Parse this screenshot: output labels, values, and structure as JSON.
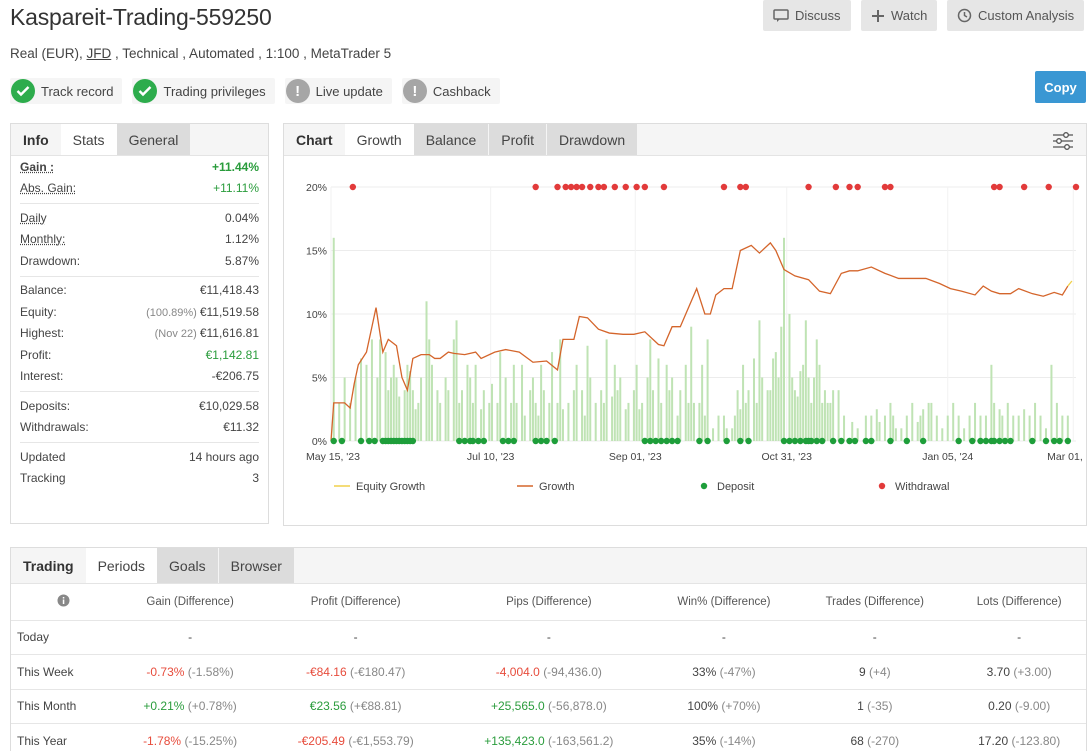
{
  "header": {
    "title": "Kaspareit-Trading-559250",
    "subtitle_pre": "Real (EUR), ",
    "broker": "JFD",
    "subtitle_post": " , Technical , Automated , 1:100 , MetaTrader 5",
    "discuss_label": "Discuss",
    "watch_label": "Watch",
    "custom_analysis_label": "Custom Analysis",
    "copy_label": "Copy"
  },
  "badges": [
    {
      "label": "Track record",
      "status": "ok"
    },
    {
      "label": "Trading privileges",
      "status": "ok"
    },
    {
      "label": "Live update",
      "status": "warn"
    },
    {
      "label": "Cashback",
      "status": "warn"
    }
  ],
  "info_panel": {
    "tabs": [
      "Info",
      "Stats",
      "General"
    ],
    "rows": [
      {
        "k": "Gain :",
        "v": "+11.44%",
        "green": true,
        "bold": true,
        "underline": true
      },
      {
        "k": "Abs. Gain:",
        "v": "+11.11%",
        "green": true,
        "underline": true
      },
      {
        "sep": true
      },
      {
        "k": "Daily",
        "v": "0.04%",
        "underline": true
      },
      {
        "k": "Monthly:",
        "v": "1.12%",
        "underline": true
      },
      {
        "k": "Drawdown:",
        "v": "5.87%"
      },
      {
        "sep": true
      },
      {
        "k": "Balance:",
        "v": "€11,418.43"
      },
      {
        "k": "Equity:",
        "pre": "(100.89%)",
        "v": "€11,519.58"
      },
      {
        "k": "Highest:",
        "pre": "(Nov 22)",
        "v": "€11,616.81"
      },
      {
        "k": "Profit:",
        "v": "€1,142.81",
        "green": true
      },
      {
        "k": "Interest:",
        "v": "-€206.75"
      },
      {
        "sep": true
      },
      {
        "k": "Deposits:",
        "v": "€10,029.58"
      },
      {
        "k": "Withdrawals:",
        "v": "€11.32"
      },
      {
        "sep": true
      },
      {
        "k": "Updated",
        "v": "14 hours ago"
      },
      {
        "k": "Tracking",
        "v": "3"
      }
    ]
  },
  "chart_panel": {
    "tabs": [
      "Chart",
      "Growth",
      "Balance",
      "Profit",
      "Drawdown"
    ],
    "settings_icon": "sliders-icon"
  },
  "chart_data": {
    "type": "line",
    "y_ticks": [
      "0%",
      "5%",
      "10%",
      "15%",
      "20%"
    ],
    "ylim": [
      0,
      20
    ],
    "x_ticks": [
      "May 15, '23",
      "Jul 10, '23",
      "Sep 01, '23",
      "Oct 31, '23",
      "Jan 05, '24",
      "Mar 01, '24"
    ],
    "legend": [
      "Equity Growth",
      "Growth",
      "Deposit",
      "Withdrawal"
    ],
    "colors": {
      "growth": "#d4652b",
      "equity": "#f0d04a",
      "deposit": "#1e9e3a",
      "withdrawal": "#e23a3a",
      "bars": "#bfe3b4"
    },
    "growth_series": [
      [
        0,
        0
      ],
      [
        2,
        3
      ],
      [
        10,
        3
      ],
      [
        14,
        2.6
      ],
      [
        17,
        4.5
      ],
      [
        20,
        6
      ],
      [
        26,
        7
      ],
      [
        30,
        9
      ],
      [
        33,
        10.5
      ],
      [
        38,
        7
      ],
      [
        42,
        8
      ],
      [
        48,
        7.5
      ],
      [
        52,
        5
      ],
      [
        56,
        4
      ],
      [
        60,
        6.5
      ],
      [
        66,
        6.8
      ],
      [
        72,
        6.8
      ],
      [
        76,
        6.5
      ],
      [
        80,
        6.5
      ],
      [
        86,
        7
      ],
      [
        90,
        6.9
      ],
      [
        98,
        6.8
      ],
      [
        106,
        7
      ],
      [
        110,
        6.5
      ],
      [
        120,
        7
      ],
      [
        128,
        7.2
      ],
      [
        138,
        7
      ],
      [
        148,
        6.2
      ],
      [
        158,
        6.3
      ],
      [
        166,
        5.6
      ],
      [
        170,
        8
      ],
      [
        178,
        8
      ],
      [
        182,
        9.8
      ],
      [
        188,
        9.7
      ],
      [
        196,
        8.8
      ],
      [
        204,
        8.5
      ],
      [
        214,
        8.4
      ],
      [
        222,
        8.4
      ],
      [
        230,
        8.6
      ],
      [
        240,
        7.6
      ],
      [
        244,
        7.5
      ],
      [
        250,
        9
      ],
      [
        256,
        9
      ],
      [
        268,
        12
      ],
      [
        274,
        10
      ],
      [
        278,
        10
      ],
      [
        282,
        11.5
      ],
      [
        288,
        12
      ],
      [
        294,
        12
      ],
      [
        300,
        15
      ],
      [
        308,
        15.4
      ],
      [
        314,
        14.8
      ],
      [
        322,
        15.6
      ],
      [
        326,
        15
      ],
      [
        332,
        13.5
      ],
      [
        340,
        13
      ],
      [
        350,
        12.7
      ],
      [
        358,
        11.8
      ],
      [
        366,
        11.6
      ],
      [
        374,
        13.2
      ],
      [
        380,
        13.4
      ],
      [
        386,
        13.4
      ],
      [
        396,
        13.7
      ],
      [
        406,
        13.2
      ],
      [
        416,
        12.8
      ],
      [
        426,
        12.8
      ],
      [
        436,
        12.8
      ],
      [
        446,
        12.4
      ],
      [
        454,
        12
      ],
      [
        462,
        11.8
      ],
      [
        472,
        11.5
      ],
      [
        478,
        12.2
      ],
      [
        484,
        11.8
      ],
      [
        490,
        11.6
      ],
      [
        498,
        11.6
      ],
      [
        504,
        12
      ],
      [
        514,
        11.6
      ],
      [
        522,
        11.4
      ],
      [
        530,
        11.7
      ],
      [
        536,
        11.5
      ],
      [
        540,
        12.2
      ]
    ],
    "equity_end": [
      [
        540,
        12.2
      ],
      [
        543,
        12.6
      ]
    ],
    "deposits_x": [
      2,
      8,
      22,
      28,
      32,
      38,
      40,
      42,
      44,
      46,
      48,
      50,
      52,
      54,
      56,
      58,
      60,
      94,
      98,
      102,
      104,
      108,
      112,
      126,
      130,
      134,
      150,
      154,
      158,
      164,
      230,
      234,
      238,
      242,
      246,
      250,
      254,
      270,
      276,
      290,
      300,
      306,
      332,
      336,
      340,
      344,
      348,
      350,
      352,
      356,
      360,
      368,
      374,
      380,
      384,
      392,
      396,
      410,
      422,
      434,
      460,
      470,
      476,
      480,
      484,
      486,
      490,
      494,
      498,
      514,
      524,
      530,
      534,
      540
    ],
    "withdrawals_x": [
      16,
      150,
      166,
      172,
      176,
      180,
      184,
      190,
      196,
      200,
      208,
      216,
      224,
      230,
      244,
      288,
      300,
      304,
      350,
      370,
      380,
      386,
      406,
      410,
      486,
      490,
      508,
      526,
      546
    ],
    "bars": [
      [
        2,
        16
      ],
      [
        6,
        3
      ],
      [
        10,
        5
      ],
      [
        14,
        3
      ],
      [
        18,
        5
      ],
      [
        22,
        6.5
      ],
      [
        26,
        6
      ],
      [
        30,
        8
      ],
      [
        34,
        5
      ],
      [
        36,
        8
      ],
      [
        40,
        7
      ],
      [
        42,
        4
      ],
      [
        44,
        5
      ],
      [
        46,
        6
      ],
      [
        48,
        5
      ],
      [
        50,
        3.5
      ],
      [
        54,
        4
      ],
      [
        56,
        6
      ],
      [
        58,
        5.5
      ],
      [
        60,
        4
      ],
      [
        62,
        2.5
      ],
      [
        64,
        3
      ],
      [
        66,
        5
      ],
      [
        70,
        11
      ],
      [
        72,
        8
      ],
      [
        74,
        6
      ],
      [
        78,
        4
      ],
      [
        80,
        3
      ],
      [
        84,
        5
      ],
      [
        86,
        4
      ],
      [
        90,
        8
      ],
      [
        92,
        9.5
      ],
      [
        94,
        3
      ],
      [
        96,
        4
      ],
      [
        100,
        6
      ],
      [
        102,
        5
      ],
      [
        104,
        3
      ],
      [
        106,
        6
      ],
      [
        110,
        2.5
      ],
      [
        112,
        4
      ],
      [
        116,
        3
      ],
      [
        118,
        4.5
      ],
      [
        122,
        3
      ],
      [
        124,
        7
      ],
      [
        128,
        5
      ],
      [
        132,
        3
      ],
      [
        134,
        6
      ],
      [
        136,
        3
      ],
      [
        140,
        6
      ],
      [
        142,
        2
      ],
      [
        146,
        4
      ],
      [
        148,
        5
      ],
      [
        150,
        3
      ],
      [
        152,
        2
      ],
      [
        154,
        6
      ],
      [
        156,
        4
      ],
      [
        160,
        3
      ],
      [
        162,
        7
      ],
      [
        166,
        3
      ],
      [
        168,
        8
      ],
      [
        170,
        2.5
      ],
      [
        174,
        3
      ],
      [
        178,
        4
      ],
      [
        180,
        6
      ],
      [
        184,
        4
      ],
      [
        186,
        2
      ],
      [
        188,
        7.5
      ],
      [
        190,
        5
      ],
      [
        194,
        3
      ],
      [
        198,
        4
      ],
      [
        200,
        3
      ],
      [
        202,
        8
      ],
      [
        206,
        3.5
      ],
      [
        208,
        6
      ],
      [
        210,
        4
      ],
      [
        212,
        5
      ],
      [
        216,
        2.5
      ],
      [
        218,
        3
      ],
      [
        222,
        4
      ],
      [
        224,
        6
      ],
      [
        226,
        2.5
      ],
      [
        228,
        3
      ],
      [
        232,
        5
      ],
      [
        234,
        8
      ],
      [
        236,
        4
      ],
      [
        240,
        6.5
      ],
      [
        242,
        3
      ],
      [
        246,
        6
      ],
      [
        248,
        4
      ],
      [
        250,
        5
      ],
      [
        254,
        2
      ],
      [
        256,
        4
      ],
      [
        260,
        6
      ],
      [
        262,
        3
      ],
      [
        264,
        9
      ],
      [
        266,
        3
      ],
      [
        270,
        3
      ],
      [
        272,
        6
      ],
      [
        274,
        2
      ],
      [
        276,
        8
      ],
      [
        280,
        1
      ],
      [
        284,
        2
      ],
      [
        288,
        2
      ],
      [
        290,
        1
      ],
      [
        294,
        1
      ],
      [
        296,
        2
      ],
      [
        298,
        4
      ],
      [
        300,
        2.5
      ],
      [
        302,
        6
      ],
      [
        304,
        3
      ],
      [
        306,
        4
      ],
      [
        310,
        6.5
      ],
      [
        312,
        3
      ],
      [
        314,
        9.5
      ],
      [
        316,
        5
      ],
      [
        320,
        4
      ],
      [
        322,
        4
      ],
      [
        324,
        6.5
      ],
      [
        326,
        7
      ],
      [
        328,
        5
      ],
      [
        330,
        9
      ],
      [
        332,
        16
      ],
      [
        336,
        10
      ],
      [
        338,
        5
      ],
      [
        340,
        4
      ],
      [
        342,
        3.5
      ],
      [
        344,
        5.5
      ],
      [
        346,
        6
      ],
      [
        348,
        9.5
      ],
      [
        350,
        5
      ],
      [
        352,
        3
      ],
      [
        354,
        5
      ],
      [
        356,
        8
      ],
      [
        358,
        6
      ],
      [
        360,
        3
      ],
      [
        362,
        4
      ],
      [
        364,
        3
      ],
      [
        366,
        3
      ],
      [
        368,
        4
      ],
      [
        372,
        4
      ],
      [
        376,
        2
      ],
      [
        382,
        1.5
      ],
      [
        386,
        1
      ],
      [
        392,
        2
      ],
      [
        396,
        2
      ],
      [
        400,
        2.5
      ],
      [
        402,
        1.5
      ],
      [
        406,
        2
      ],
      [
        410,
        3
      ],
      [
        412,
        2
      ],
      [
        414,
        1
      ],
      [
        418,
        1
      ],
      [
        422,
        2
      ],
      [
        426,
        3
      ],
      [
        430,
        1.5
      ],
      [
        432,
        2
      ],
      [
        434,
        2.5
      ],
      [
        438,
        3
      ],
      [
        440,
        3
      ],
      [
        444,
        2
      ],
      [
        448,
        1
      ],
      [
        452,
        2
      ],
      [
        456,
        3
      ],
      [
        460,
        2
      ],
      [
        464,
        1
      ],
      [
        468,
        2
      ],
      [
        472,
        3
      ],
      [
        476,
        2
      ],
      [
        480,
        2
      ],
      [
        484,
        6
      ],
      [
        486,
        3
      ],
      [
        490,
        2.5
      ],
      [
        492,
        2
      ],
      [
        496,
        3
      ],
      [
        500,
        2
      ],
      [
        504,
        2
      ],
      [
        508,
        2.5
      ],
      [
        512,
        2
      ],
      [
        516,
        3
      ],
      [
        520,
        2
      ],
      [
        524,
        1
      ],
      [
        528,
        6
      ],
      [
        532,
        3
      ],
      [
        536,
        2
      ],
      [
        540,
        2
      ]
    ]
  },
  "trading_panel": {
    "tabs": [
      "Trading",
      "Periods",
      "Goals",
      "Browser"
    ],
    "columns": [
      "Gain (Difference)",
      "Profit (Difference)",
      "Pips (Difference)",
      "Win% (Difference)",
      "Trades (Difference)",
      "Lots (Difference)"
    ],
    "rows": [
      {
        "label": "Today",
        "cells": [
          [
            "-",
            "",
            ""
          ],
          [
            "-",
            "",
            ""
          ],
          [
            "-",
            "",
            ""
          ],
          [
            "-",
            "",
            ""
          ],
          [
            "-",
            "",
            ""
          ],
          [
            "-",
            "",
            ""
          ]
        ]
      },
      {
        "label": "This Week",
        "cells": [
          [
            "-0.73%",
            "(-1.58%)",
            "red"
          ],
          [
            "-€84.16",
            "(-€180.47)",
            "red"
          ],
          [
            "-4,004.0",
            "(-94,436.0)",
            "red"
          ],
          [
            "33%",
            "(-47%)",
            ""
          ],
          [
            "9",
            "(+4)",
            ""
          ],
          [
            "3.70",
            "(+3.00)",
            ""
          ]
        ]
      },
      {
        "label": "This Month",
        "cells": [
          [
            "+0.21%",
            "(+0.78%)",
            "grn"
          ],
          [
            "€23.56",
            "(+€88.81)",
            "grn"
          ],
          [
            "+25,565.0",
            "(-56,878.0)",
            "grn"
          ],
          [
            "100%",
            "(+70%)",
            ""
          ],
          [
            "1",
            "(-35)",
            ""
          ],
          [
            "0.20",
            "(-9.00)",
            ""
          ]
        ]
      },
      {
        "label": "This Year",
        "cells": [
          [
            "-1.78%",
            "(-15.25%)",
            "red"
          ],
          [
            "-€205.49",
            "(-€1,553.79)",
            "red"
          ],
          [
            "+135,423.0",
            "(-163,561.2)",
            "grn"
          ],
          [
            "35%",
            "(-14%)",
            ""
          ],
          [
            "68",
            "(-270)",
            ""
          ],
          [
            "17.20",
            "(-123.80)",
            ""
          ]
        ]
      }
    ]
  }
}
